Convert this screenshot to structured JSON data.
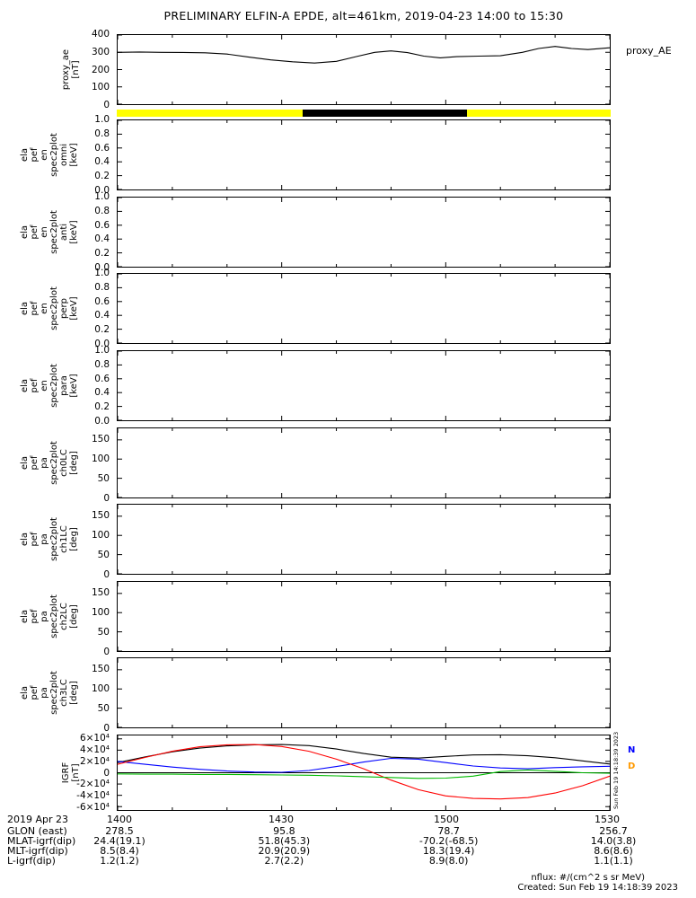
{
  "title": "PRELIMINARY ELFIN-A EPDE, alt=461km, 2019-04-23 14:00 to 15:30",
  "date_label": "2019 Apr 23",
  "colors": {
    "science_bar_yellow": "#ffff00",
    "science_bar_black": "#000000",
    "proxy_line": "#000000",
    "igrf_black": "#000000",
    "igrf_blue": "#0000ff",
    "igrf_red": "#ff0000",
    "igrf_green": "#00bb00",
    "right_label_blue": "#0000ff",
    "right_label_orange": "#ff9900"
  },
  "xaxis": {
    "lim": [
      0,
      90
    ],
    "major": [
      0,
      30,
      60,
      90
    ],
    "minor": [
      10,
      20,
      40,
      50,
      70,
      80
    ],
    "labels": [
      "1400",
      "1430",
      "1500",
      "1530"
    ]
  },
  "panels": [
    {
      "id": "proxy_ae",
      "ylabel": "proxy_ae\n[nT]"
    },
    {
      "id": "science_zone_bar",
      "ylabel": ""
    },
    {
      "id": "ela_pef_en_spec2plot_omni",
      "ylabel": "ela\npef\nen\nspec2plot\nomni\n[keV]"
    },
    {
      "id": "ela_pef_en_spec2plot_anti",
      "ylabel": "ela\npef\nen\nspec2plot\nanti\n[keV]"
    },
    {
      "id": "ela_pef_en_spec2plot_perp",
      "ylabel": "ela\npef\nen\nspec2plot\nperp\n[keV]"
    },
    {
      "id": "ela_pef_en_spec2plot_para",
      "ylabel": "ela\npef\nen\nspec2plot\npara\n[keV]"
    },
    {
      "id": "ela_pef_pa_spec2plot_ch0LC",
      "ylabel": "ela\npef\npa\nspec2plot\nch0LC\n[deg]"
    },
    {
      "id": "ela_pef_pa_spec2plot_ch1LC",
      "ylabel": "ela\npef\npa\nspec2plot\nch1LC\n[deg]"
    },
    {
      "id": "ela_pef_pa_spec2plot_ch2LC",
      "ylabel": "ela\npef\npa\nspec2plot\nch2LC\n[deg]"
    },
    {
      "id": "ela_pef_pa_spec2plot_ch3LC",
      "ylabel": "ela\npef\npa\nspec2plot\nch3LC\n[deg]"
    },
    {
      "id": "igrf",
      "ylabel": "IGRF\n[nT]"
    }
  ],
  "right_labels": {
    "proxy": "proxy_AE",
    "igrf_n": "N",
    "igrf_d": "D"
  },
  "bottom_rows": [
    {
      "label": "GLON (east)",
      "values": [
        "278.5",
        "95.8",
        "78.7",
        "256.7"
      ]
    },
    {
      "label": "MLAT-igrf(dip)",
      "values": [
        "24.4(19.1)",
        "51.8(45.3)",
        "-70.2(-68.5)",
        "14.0(3.8)"
      ]
    },
    {
      "label": "MLT-igrf(dip)",
      "values": [
        "8.5(8.4)",
        "20.9(20.9)",
        "18.3(19.4)",
        "8.6(8.6)"
      ]
    },
    {
      "label": "L-igrf(dip)",
      "values": [
        "1.2(1.2)",
        "2.7(2.2)",
        "8.9(8.0)",
        "1.1(1.1)"
      ]
    }
  ],
  "footer": {
    "nflux": "nflux: #/(cm^2 s sr MeV)",
    "created": "Created: Sun Feb 19 14:18:39 2023"
  },
  "vertical_stamp": "Sun Feb 19 14:18:39 2023",
  "chart_data": [
    {
      "type": "line",
      "panel": "proxy_AE",
      "title": "proxy_ae [nT]",
      "ylim": [
        0,
        400
      ],
      "yticks": [
        {
          "v": 0,
          "label": "0"
        },
        {
          "v": 100,
          "label": "100"
        },
        {
          "v": 200,
          "label": "200"
        },
        {
          "v": 300,
          "label": "300"
        },
        {
          "v": 400,
          "label": "400"
        }
      ],
      "x_unit": "minutes after 14:00 UT",
      "x": [
        0,
        4,
        8,
        12,
        16,
        20,
        24,
        28,
        32,
        36,
        40,
        44,
        47,
        50,
        53,
        56,
        59,
        62,
        66,
        70,
        74,
        77,
        80,
        83,
        86,
        90
      ],
      "series": [
        {
          "name": "proxy_AE",
          "color": "#000000",
          "values": [
            300,
            302,
            300,
            299,
            297,
            290,
            272,
            256,
            245,
            238,
            248,
            278,
            300,
            308,
            298,
            278,
            268,
            275,
            278,
            280,
            300,
            322,
            334,
            322,
            316,
            326
          ]
        }
      ]
    },
    {
      "type": "interval",
      "panel": "science_zone_bar",
      "segments": [
        {
          "from": 0,
          "to": 90,
          "color": "#ffff00",
          "name": "fast-survey-available"
        },
        {
          "from": 33.9,
          "to": 63.8,
          "color": "#000000",
          "name": "science-zone-collection"
        }
      ]
    },
    {
      "type": "spectrogram",
      "panel": "ela_pef_en_spec2plot_omni",
      "note": "no data shown",
      "ylim": [
        0,
        1
      ],
      "yticks": [
        {
          "v": 0,
          "label": "0.0"
        },
        {
          "v": 0.2,
          "label": "0.2"
        },
        {
          "v": 0.4,
          "label": "0.4"
        },
        {
          "v": 0.6,
          "label": "0.6"
        },
        {
          "v": 0.8,
          "label": "0.8"
        },
        {
          "v": 1,
          "label": "1.0"
        }
      ],
      "series": []
    },
    {
      "type": "spectrogram",
      "panel": "ela_pef_en_spec2plot_anti",
      "note": "no data shown",
      "ylim": [
        0,
        1
      ],
      "yticks": [
        {
          "v": 0,
          "label": "0.0"
        },
        {
          "v": 0.2,
          "label": "0.2"
        },
        {
          "v": 0.4,
          "label": "0.4"
        },
        {
          "v": 0.6,
          "label": "0.6"
        },
        {
          "v": 0.8,
          "label": "0.8"
        },
        {
          "v": 1,
          "label": "1.0"
        }
      ],
      "series": []
    },
    {
      "type": "spectrogram",
      "panel": "ela_pef_en_spec2plot_perp",
      "note": "no data shown",
      "ylim": [
        0,
        1
      ],
      "yticks": [
        {
          "v": 0,
          "label": "0.0"
        },
        {
          "v": 0.2,
          "label": "0.2"
        },
        {
          "v": 0.4,
          "label": "0.4"
        },
        {
          "v": 0.6,
          "label": "0.6"
        },
        {
          "v": 0.8,
          "label": "0.8"
        },
        {
          "v": 1,
          "label": "1.0"
        }
      ],
      "series": []
    },
    {
      "type": "spectrogram",
      "panel": "ela_pef_en_spec2plot_para",
      "note": "no data shown",
      "ylim": [
        0,
        1
      ],
      "yticks": [
        {
          "v": 0,
          "label": "0.0"
        },
        {
          "v": 0.2,
          "label": "0.2"
        },
        {
          "v": 0.4,
          "label": "0.4"
        },
        {
          "v": 0.6,
          "label": "0.6"
        },
        {
          "v": 0.8,
          "label": "0.8"
        },
        {
          "v": 1,
          "label": "1.0"
        }
      ],
      "series": []
    },
    {
      "type": "spectrogram",
      "panel": "ela_pef_pa_spec2plot_ch0LC",
      "note": "no data shown",
      "ylim": [
        0,
        180
      ],
      "yticks": [
        {
          "v": 0,
          "label": "0"
        },
        {
          "v": 50,
          "label": "50"
        },
        {
          "v": 100,
          "label": "100"
        },
        {
          "v": 150,
          "label": "150"
        }
      ],
      "series": []
    },
    {
      "type": "spectrogram",
      "panel": "ela_pef_pa_spec2plot_ch1LC",
      "note": "no data shown",
      "ylim": [
        0,
        180
      ],
      "yticks": [
        {
          "v": 0,
          "label": "0"
        },
        {
          "v": 50,
          "label": "50"
        },
        {
          "v": 100,
          "label": "100"
        },
        {
          "v": 150,
          "label": "150"
        }
      ],
      "series": []
    },
    {
      "type": "spectrogram",
      "panel": "ela_pef_pa_spec2plot_ch2LC",
      "note": "no data shown",
      "ylim": [
        0,
        180
      ],
      "yticks": [
        {
          "v": 0,
          "label": "0"
        },
        {
          "v": 50,
          "label": "50"
        },
        {
          "v": 100,
          "label": "100"
        },
        {
          "v": 150,
          "label": "150"
        }
      ],
      "series": []
    },
    {
      "type": "spectrogram",
      "panel": "ela_pef_pa_spec2plot_ch3LC",
      "note": "no data shown",
      "ylim": [
        0,
        180
      ],
      "yticks": [
        {
          "v": 0,
          "label": "0"
        },
        {
          "v": 50,
          "label": "50"
        },
        {
          "v": 100,
          "label": "100"
        },
        {
          "v": 150,
          "label": "150"
        }
      ],
      "series": []
    },
    {
      "type": "line",
      "panel": "IGRF",
      "title": "IGRF [nT]",
      "ylim": [
        -66000,
        66000
      ],
      "zero_line": true,
      "yticks": [
        {
          "v": -60000,
          "label": "-6×10⁴"
        },
        {
          "v": -40000,
          "label": "-4×10⁴"
        },
        {
          "v": -20000,
          "label": "-2×10⁴"
        },
        {
          "v": 0,
          "label": "0"
        },
        {
          "v": 20000,
          "label": "2×10⁴"
        },
        {
          "v": 40000,
          "label": "4×10⁴"
        },
        {
          "v": 60000,
          "label": "6×10⁴"
        }
      ],
      "x_unit": "minutes after 14:00 UT",
      "x": [
        0,
        5,
        10,
        15,
        20,
        25,
        30,
        35,
        40,
        45,
        50,
        55,
        60,
        65,
        70,
        75,
        80,
        85,
        90
      ],
      "series": [
        {
          "name": "igrf-black",
          "color": "#000000",
          "values": [
            18000,
            28000,
            37000,
            43500,
            47500,
            49500,
            50000,
            48000,
            42000,
            34000,
            27500,
            26000,
            29000,
            31500,
            32000,
            30000,
            26500,
            21000,
            15500
          ]
        },
        {
          "name": "igrf-blue",
          "color": "#0000ff",
          "values": [
            20000,
            15000,
            10000,
            6000,
            3000,
            1200,
            800,
            4000,
            11000,
            19000,
            25500,
            24000,
            18000,
            12000,
            8500,
            7000,
            9000,
            10500,
            11500
          ]
        },
        {
          "name": "igrf-red",
          "color": "#ff0000",
          "values": [
            15000,
            27000,
            38000,
            46000,
            49500,
            50000,
            46500,
            38000,
            24000,
            7000,
            -13000,
            -30000,
            -41000,
            -45500,
            -46500,
            -44000,
            -36000,
            -23000,
            -6000
          ]
        },
        {
          "name": "igrf-green",
          "color": "#00bb00",
          "values": [
            -2000,
            -2500,
            -2500,
            -3000,
            -3000,
            -3500,
            -4000,
            -4500,
            -5500,
            -7000,
            -8500,
            -10000,
            -9500,
            -6000,
            2000,
            5000,
            2500,
            0,
            -1000
          ]
        }
      ]
    }
  ]
}
